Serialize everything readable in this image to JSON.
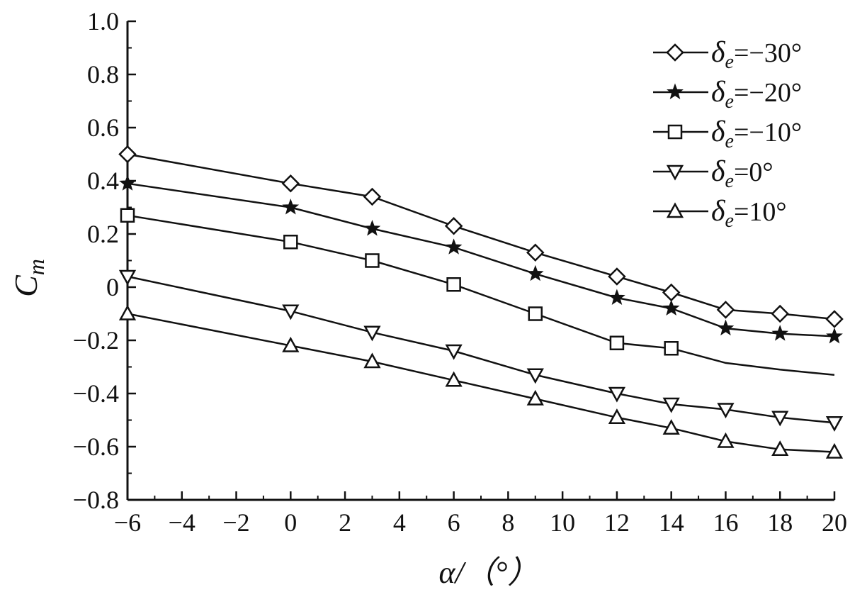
{
  "chart_data": {
    "type": "line",
    "xlabel": "α/（°）",
    "ylabel": "C_m",
    "xlim": [
      -6,
      20
    ],
    "ylim": [
      -0.8,
      1.0
    ],
    "xticks": [
      -6,
      -4,
      -2,
      0,
      2,
      4,
      6,
      8,
      10,
      12,
      14,
      16,
      18,
      20
    ],
    "yticks": [
      -0.8,
      -0.6,
      -0.4,
      -0.2,
      0,
      0.2,
      0.4,
      0.6,
      0.8,
      1.0
    ],
    "xtick_labels": [
      "−6",
      "−4",
      "−2",
      "0",
      "2",
      "4",
      "6",
      "8",
      "10",
      "12",
      "14",
      "16",
      "18",
      "20"
    ],
    "ytick_labels": [
      "−0.8",
      "−0.6",
      "−0.4",
      "−0.2",
      "0",
      "0.2",
      "0.4",
      "0.6",
      "0.8",
      "1.0"
    ],
    "grid": false,
    "legend_position": "top-right",
    "series": [
      {
        "name": "δe=−30°",
        "sym": "δ",
        "sub": "e",
        "val": "=−30°",
        "marker": "diamond",
        "x": [
          -6,
          0,
          3,
          6,
          9,
          12,
          14,
          16,
          18,
          20
        ],
        "y": [
          0.5,
          0.39,
          0.34,
          0.23,
          0.13,
          0.04,
          -0.02,
          -0.085,
          -0.1,
          -0.12
        ],
        "marked": [
          true,
          true,
          true,
          true,
          true,
          true,
          true,
          true,
          true,
          true
        ]
      },
      {
        "name": "δe=−20°",
        "sym": "δ",
        "sub": "e",
        "val": "=−20°",
        "marker": "star",
        "x": [
          -6,
          0,
          3,
          6,
          9,
          12,
          14,
          16,
          18,
          20
        ],
        "y": [
          0.39,
          0.3,
          0.22,
          0.15,
          0.05,
          -0.04,
          -0.08,
          -0.155,
          -0.175,
          -0.185
        ],
        "marked": [
          true,
          true,
          true,
          true,
          true,
          true,
          true,
          true,
          true,
          true
        ]
      },
      {
        "name": "δe=−10°",
        "sym": "δ",
        "sub": "e",
        "val": "=−10°",
        "marker": "square",
        "x": [
          -6,
          0,
          3,
          6,
          9,
          12,
          14,
          16,
          18,
          20
        ],
        "y": [
          0.27,
          0.17,
          0.1,
          0.01,
          -0.1,
          -0.21,
          -0.23,
          -0.285,
          -0.31,
          -0.33
        ],
        "marked": [
          true,
          true,
          true,
          true,
          true,
          true,
          true,
          false,
          false,
          false
        ]
      },
      {
        "name": "δe=0°",
        "sym": "δ",
        "sub": "e",
        "val": "=0°",
        "marker": "triangle-down",
        "x": [
          -6,
          0,
          3,
          6,
          9,
          12,
          14,
          16,
          18,
          20
        ],
        "y": [
          0.04,
          -0.09,
          -0.17,
          -0.24,
          -0.33,
          -0.4,
          -0.44,
          -0.46,
          -0.49,
          -0.51
        ],
        "marked": [
          true,
          true,
          true,
          true,
          true,
          true,
          true,
          true,
          true,
          true
        ]
      },
      {
        "name": "δe=10°",
        "sym": "δ",
        "sub": "e",
        "val": "=10°",
        "marker": "triangle-up",
        "x": [
          -6,
          0,
          3,
          6,
          9,
          12,
          14,
          16,
          18,
          20
        ],
        "y": [
          -0.1,
          -0.22,
          -0.28,
          -0.35,
          -0.42,
          -0.49,
          -0.53,
          -0.58,
          -0.61,
          -0.62
        ],
        "marked": [
          true,
          true,
          true,
          true,
          true,
          true,
          true,
          true,
          true,
          true
        ]
      }
    ]
  }
}
